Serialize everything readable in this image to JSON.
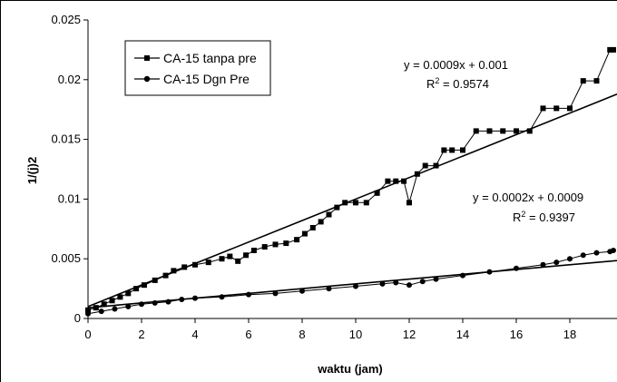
{
  "chart_data": {
    "type": "scatter",
    "title": "",
    "xlabel": "waktu (jam)",
    "ylabel": "1/(j)2",
    "xlim": [
      0,
      20
    ],
    "ylim": [
      0,
      0.025
    ],
    "x_ticks": [
      "0",
      "2",
      "4",
      "6",
      "8",
      "10",
      "12",
      "14",
      "16",
      "18",
      "2"
    ],
    "y_ticks": [
      "0",
      "0.005",
      "0.01",
      "0.015",
      "0.02",
      "0.025"
    ],
    "grid": false,
    "legend_position": "top-left",
    "series": [
      {
        "name": "CA-15 tanpa pre",
        "marker": "square",
        "color": "#000000",
        "x": [
          0,
          0.3,
          0.6,
          0.9,
          1.2,
          1.5,
          1.8,
          2.1,
          2.5,
          2.9,
          3.2,
          3.6,
          4.0,
          4.5,
          5.0,
          5.3,
          5.6,
          5.9,
          6.2,
          6.6,
          7.0,
          7.4,
          7.8,
          8.1,
          8.4,
          8.7,
          9.0,
          9.3,
          9.6,
          10.0,
          10.4,
          10.8,
          11.2,
          11.5,
          11.8,
          12.0,
          12.3,
          12.6,
          13.0,
          13.3,
          13.6,
          14.0,
          14.5,
          15.0,
          15.5,
          16.0,
          16.5,
          17.0,
          17.5,
          18.0,
          18.5,
          19.0,
          19.5,
          20.0
        ],
        "y": [
          0.0007,
          0.0009,
          0.0012,
          0.0015,
          0.0018,
          0.0021,
          0.0025,
          0.0028,
          0.0032,
          0.0036,
          0.004,
          0.0043,
          0.0045,
          0.0047,
          0.005,
          0.0052,
          0.0048,
          0.0053,
          0.0057,
          0.006,
          0.0062,
          0.0063,
          0.0066,
          0.0071,
          0.0076,
          0.0081,
          0.0087,
          0.0093,
          0.0097,
          0.0097,
          0.0097,
          0.0105,
          0.0115,
          0.0115,
          0.0115,
          0.0097,
          0.0121,
          0.0128,
          0.0128,
          0.0141,
          0.0141,
          0.0141,
          0.0157,
          0.0157,
          0.0157,
          0.0157,
          0.0157,
          0.0176,
          0.0176,
          0.0176,
          0.0199,
          0.0199,
          0.0225,
          0.0225
        ]
      },
      {
        "name": "CA-15 Dgn Pre",
        "marker": "circle",
        "color": "#000000",
        "x": [
          0,
          0.5,
          1.0,
          1.5,
          2.0,
          2.5,
          3.0,
          3.5,
          4.0,
          5.0,
          6.0,
          7.0,
          8.0,
          9.0,
          10.0,
          11.0,
          11.5,
          12.0,
          12.5,
          13.0,
          14.0,
          15.0,
          16.0,
          17.0,
          17.5,
          18.0,
          18.5,
          19.0,
          19.5,
          20.0
        ],
        "y": [
          0.0004,
          0.0006,
          0.0008,
          0.001,
          0.0012,
          0.0013,
          0.0014,
          0.0016,
          0.0017,
          0.0018,
          0.002,
          0.0021,
          0.0023,
          0.0025,
          0.0027,
          0.0029,
          0.003,
          0.0028,
          0.0031,
          0.0033,
          0.0036,
          0.0039,
          0.0042,
          0.0045,
          0.0047,
          0.005,
          0.0053,
          0.0055,
          0.0056,
          0.0057
        ]
      }
    ],
    "trendlines": [
      {
        "series": "CA-15 tanpa pre",
        "slope": 0.0009,
        "intercept": 0.001,
        "equation": "y = 0.0009x + 0.001",
        "r2_prefix": "R",
        "r2_sup": "2",
        "r2_value": " = 0.9574"
      },
      {
        "series": "CA-15 Dgn Pre",
        "slope": 0.0002,
        "intercept": 0.0009,
        "equation": "y = 0.0002x + 0.0009",
        "r2_prefix": "R",
        "r2_sup": "2",
        "r2_value": " = 0.9397"
      }
    ]
  }
}
